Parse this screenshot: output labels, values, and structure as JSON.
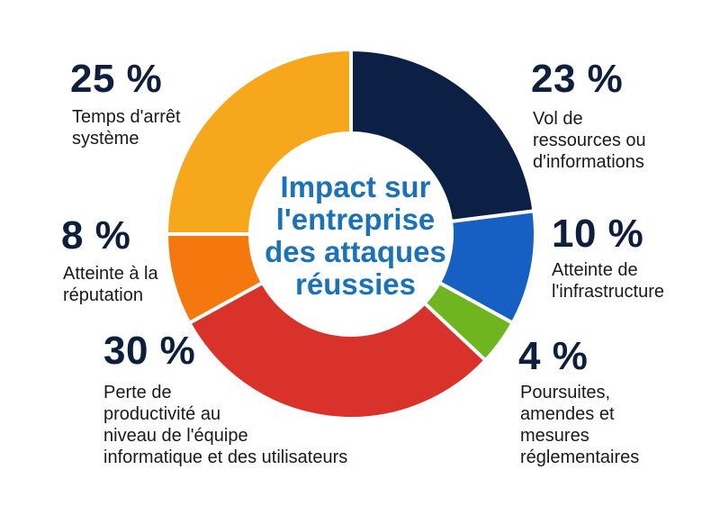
{
  "chart_data": {
    "type": "pie",
    "title": "Impact sur\nl'entreprise\ndes attaques\nréussies",
    "slices": [
      {
        "name": "Vol de\nressources ou\nd'informations",
        "value": 23,
        "value_label": "23 %",
        "color": "#0c2046"
      },
      {
        "name": "Atteinte de\nl'infrastructure",
        "value": 10,
        "value_label": "10 %",
        "color": "#1560c2"
      },
      {
        "name": "Poursuites,\namendes et\nmesures\nréglementaires",
        "value": 4,
        "value_label": "4 %",
        "color": "#6fb520"
      },
      {
        "name": "Perte de\nproductivité au\nniveau de l'équipe\ninformatique et des utilisateurs",
        "value": 30,
        "value_label": "30 %",
        "color": "#d9322a"
      },
      {
        "name": "Atteinte à la\nréputation",
        "value": 8,
        "value_label": "8 %",
        "color": "#f5780e"
      },
      {
        "name": "Temps d'arrêt\nsystème",
        "value": 25,
        "value_label": "25 %",
        "color": "#f7a71c"
      }
    ]
  }
}
